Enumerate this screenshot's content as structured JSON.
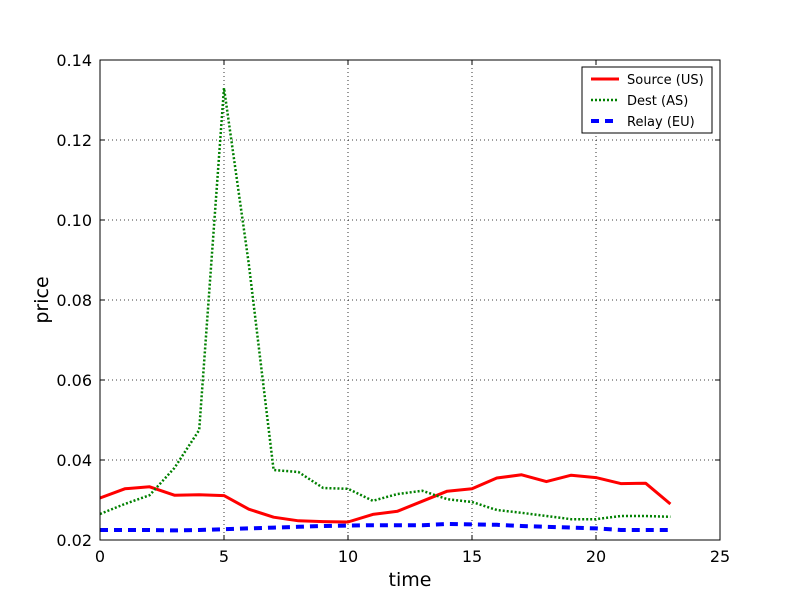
{
  "chart_data": {
    "type": "line",
    "title": "",
    "xlabel": "time",
    "ylabel": "price",
    "xlim": [
      0,
      25
    ],
    "ylim": [
      0.02,
      0.14
    ],
    "xticks": [
      0,
      5,
      10,
      15,
      20,
      25
    ],
    "yticks": [
      0.02,
      0.04,
      0.06,
      0.08,
      0.1,
      0.12,
      0.14
    ],
    "xtick_labels": [
      "0",
      "5",
      "10",
      "15",
      "20",
      "25"
    ],
    "ytick_labels": [
      "0.02",
      "0.04",
      "0.06",
      "0.08",
      "0.10",
      "0.12",
      "0.14"
    ],
    "grid": true,
    "legend_position": "top-right",
    "x": [
      0,
      1,
      2,
      3,
      4,
      5,
      6,
      7,
      8,
      9,
      10,
      11,
      12,
      13,
      14,
      15,
      16,
      17,
      18,
      19,
      20,
      21,
      22,
      23
    ],
    "series": [
      {
        "name": "Source (US)",
        "color": "#ff0000",
        "style": "solid",
        "values": [
          0.0305,
          0.0328,
          0.0333,
          0.0312,
          0.0313,
          0.0311,
          0.0277,
          0.0257,
          0.0248,
          0.0246,
          0.0245,
          0.0264,
          0.0272,
          0.0297,
          0.0322,
          0.0328,
          0.0355,
          0.0363,
          0.0346,
          0.0362,
          0.0356,
          0.0341,
          0.0342,
          0.029
        ]
      },
      {
        "name": "Dest (AS)",
        "color": "#008000",
        "style": "dotted",
        "values": [
          0.0265,
          0.029,
          0.0312,
          0.038,
          0.0475,
          0.133,
          0.089,
          0.0375,
          0.037,
          0.033,
          0.0328,
          0.0298,
          0.0315,
          0.0323,
          0.0302,
          0.0295,
          0.0275,
          0.0268,
          0.026,
          0.0252,
          0.0252,
          0.026,
          0.026,
          0.0258
        ]
      },
      {
        "name": "Relay (EU)",
        "color": "#0000ff",
        "style": "dashed",
        "values": [
          0.0225,
          0.0225,
          0.0225,
          0.0224,
          0.0225,
          0.0227,
          0.0229,
          0.0231,
          0.0233,
          0.0235,
          0.0236,
          0.0237,
          0.0237,
          0.0237,
          0.024,
          0.0239,
          0.0238,
          0.0235,
          0.0233,
          0.0231,
          0.0229,
          0.0225,
          0.0225,
          0.0225
        ]
      }
    ]
  }
}
